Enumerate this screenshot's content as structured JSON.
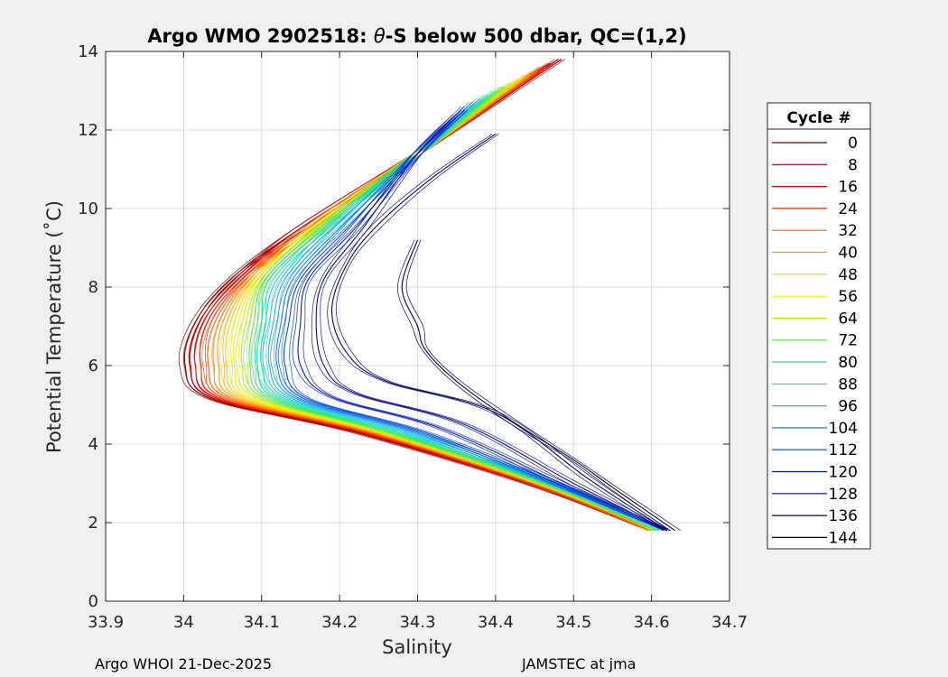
{
  "chart_data": {
    "type": "line",
    "title_prefix": "Argo WMO 2902518: ",
    "title_theta": "θ",
    "title_suffix": "-S below 500 dbar,  QC=(1,2)",
    "xlabel": "Salinity",
    "ylabel": "Potential Temperature (˚C)",
    "xlim": [
      33.9,
      34.7
    ],
    "ylim": [
      0,
      14
    ],
    "xticks": [
      33.9,
      34.0,
      34.1,
      34.2,
      34.3,
      34.4,
      34.5,
      34.6,
      34.7
    ],
    "xtick_labels": [
      "33.9",
      "34",
      "34.1",
      "34.2",
      "34.3",
      "34.4",
      "34.5",
      "34.6",
      "34.7"
    ],
    "yticks": [
      0,
      2,
      4,
      6,
      8,
      10,
      12,
      14
    ],
    "ytick_labels": [
      "0",
      "2",
      "4",
      "6",
      "8",
      "10",
      "12",
      "14"
    ],
    "grid": true,
    "legend_title": "Cycle #",
    "legend_position": "right",
    "series": [
      {
        "name": "0",
        "color": "#800000",
        "points": [
          [
            34.485,
            13.8
          ],
          [
            34.3,
            11.4
          ],
          [
            34.15,
            9.5
          ],
          [
            34.06,
            8.2
          ],
          [
            34.015,
            7.1
          ],
          [
            34.002,
            6.0
          ],
          [
            34.035,
            5.15
          ],
          [
            34.22,
            4.3
          ],
          [
            34.45,
            2.95
          ],
          [
            34.6,
            1.8
          ]
        ]
      },
      {
        "name": "8",
        "color": "#b00000",
        "points": [
          [
            34.48,
            13.8
          ],
          [
            34.3,
            11.4
          ],
          [
            34.15,
            9.5
          ],
          [
            34.065,
            8.2
          ],
          [
            34.02,
            7.1
          ],
          [
            34.008,
            6.0
          ],
          [
            34.04,
            5.15
          ],
          [
            34.225,
            4.3
          ],
          [
            34.452,
            2.95
          ],
          [
            34.6,
            1.8
          ]
        ]
      },
      {
        "name": "16",
        "color": "#dd0000",
        "points": [
          [
            34.47,
            13.7
          ],
          [
            34.3,
            11.4
          ],
          [
            34.15,
            9.5
          ],
          [
            34.07,
            8.2
          ],
          [
            34.025,
            7.1
          ],
          [
            34.015,
            6.0
          ],
          [
            34.045,
            5.15
          ],
          [
            34.23,
            4.3
          ],
          [
            34.455,
            2.95
          ],
          [
            34.6,
            1.8
          ]
        ]
      },
      {
        "name": "24",
        "color": "#ff2000",
        "points": [
          [
            34.46,
            13.6
          ],
          [
            34.3,
            11.4
          ],
          [
            34.16,
            9.5
          ],
          [
            34.075,
            8.2
          ],
          [
            34.03,
            7.1
          ],
          [
            34.022,
            6.0
          ],
          [
            34.05,
            5.15
          ],
          [
            34.235,
            4.3
          ],
          [
            34.457,
            2.95
          ],
          [
            34.6,
            1.8
          ]
        ]
      },
      {
        "name": "32",
        "color": "#ff5a00",
        "points": [
          [
            34.46,
            13.6
          ],
          [
            34.3,
            11.4
          ],
          [
            34.16,
            9.5
          ],
          [
            34.08,
            8.2
          ],
          [
            34.04,
            7.1
          ],
          [
            34.032,
            6.0
          ],
          [
            34.06,
            5.15
          ],
          [
            34.24,
            4.3
          ],
          [
            34.46,
            2.95
          ],
          [
            34.6,
            1.8
          ]
        ]
      },
      {
        "name": "40",
        "color": "#ff9600",
        "points": [
          [
            34.45,
            13.5
          ],
          [
            34.3,
            11.4
          ],
          [
            34.16,
            9.5
          ],
          [
            34.085,
            8.2
          ],
          [
            34.05,
            7.1
          ],
          [
            34.045,
            6.0
          ],
          [
            34.07,
            5.15
          ],
          [
            34.245,
            4.3
          ],
          [
            34.462,
            2.95
          ],
          [
            34.6,
            1.8
          ]
        ]
      },
      {
        "name": "48",
        "color": "#ffc800",
        "points": [
          [
            34.44,
            13.4
          ],
          [
            34.3,
            11.4
          ],
          [
            34.165,
            9.5
          ],
          [
            34.09,
            8.2
          ],
          [
            34.06,
            7.1
          ],
          [
            34.055,
            6.0
          ],
          [
            34.08,
            5.15
          ],
          [
            34.25,
            4.3
          ],
          [
            34.465,
            2.95
          ],
          [
            34.605,
            1.8
          ]
        ]
      },
      {
        "name": "56",
        "color": "#f5f000",
        "points": [
          [
            34.43,
            13.3
          ],
          [
            34.3,
            11.4
          ],
          [
            34.165,
            9.5
          ],
          [
            34.095,
            8.2
          ],
          [
            34.07,
            7.1
          ],
          [
            34.065,
            6.0
          ],
          [
            34.09,
            5.15
          ],
          [
            34.255,
            4.3
          ],
          [
            34.467,
            2.95
          ],
          [
            34.605,
            1.8
          ]
        ]
      },
      {
        "name": "64",
        "color": "#b4f000",
        "points": [
          [
            34.42,
            13.2
          ],
          [
            34.3,
            11.4
          ],
          [
            34.17,
            9.5
          ],
          [
            34.1,
            8.2
          ],
          [
            34.08,
            7.1
          ],
          [
            34.075,
            6.0
          ],
          [
            34.1,
            5.15
          ],
          [
            34.26,
            4.3
          ],
          [
            34.47,
            2.95
          ],
          [
            34.605,
            1.8
          ]
        ]
      },
      {
        "name": "72",
        "color": "#5ae650",
        "points": [
          [
            34.41,
            13.1
          ],
          [
            34.3,
            11.4
          ],
          [
            34.175,
            9.5
          ],
          [
            34.105,
            8.2
          ],
          [
            34.09,
            7.1
          ],
          [
            34.085,
            6.0
          ],
          [
            34.11,
            5.15
          ],
          [
            34.265,
            4.3
          ],
          [
            34.472,
            2.95
          ],
          [
            34.61,
            1.8
          ]
        ]
      },
      {
        "name": "80",
        "color": "#1ee682",
        "points": [
          [
            34.4,
            13.0
          ],
          [
            34.3,
            11.4
          ],
          [
            34.18,
            9.5
          ],
          [
            34.11,
            8.2
          ],
          [
            34.1,
            7.1
          ],
          [
            34.095,
            6.0
          ],
          [
            34.12,
            5.15
          ],
          [
            34.27,
            4.3
          ],
          [
            34.475,
            2.95
          ],
          [
            34.61,
            1.8
          ]
        ]
      },
      {
        "name": "88",
        "color": "#14dcbe",
        "points": [
          [
            34.39,
            12.9
          ],
          [
            34.3,
            11.4
          ],
          [
            34.185,
            9.5
          ],
          [
            34.12,
            8.2
          ],
          [
            34.105,
            7.1
          ],
          [
            34.1,
            6.0
          ],
          [
            34.13,
            5.15
          ],
          [
            34.28,
            4.3
          ],
          [
            34.478,
            2.95
          ],
          [
            34.615,
            1.8
          ]
        ]
      },
      {
        "name": "96",
        "color": "#1eb4f0",
        "points": [
          [
            34.38,
            12.8
          ],
          [
            34.3,
            11.4
          ],
          [
            34.19,
            9.5
          ],
          [
            34.13,
            8.2
          ],
          [
            34.115,
            7.1
          ],
          [
            34.11,
            6.0
          ],
          [
            34.14,
            5.15
          ],
          [
            34.29,
            4.3
          ],
          [
            34.48,
            2.95
          ],
          [
            34.62,
            1.8
          ]
        ]
      },
      {
        "name": "104",
        "color": "#0a82e6",
        "points": [
          [
            34.37,
            12.7
          ],
          [
            34.3,
            11.4
          ],
          [
            34.2,
            9.5
          ],
          [
            34.14,
            8.2
          ],
          [
            34.125,
            7.1
          ],
          [
            34.12,
            6.0
          ],
          [
            34.15,
            5.15
          ],
          [
            34.3,
            4.3
          ],
          [
            34.482,
            2.95
          ],
          [
            34.62,
            1.8
          ]
        ]
      },
      {
        "name": "112",
        "color": "#0a46dc",
        "points": [
          [
            34.36,
            12.6
          ],
          [
            34.3,
            11.4
          ],
          [
            34.21,
            9.5
          ],
          [
            34.15,
            8.2
          ],
          [
            34.135,
            7.1
          ],
          [
            34.13,
            6.0
          ],
          [
            34.16,
            5.15
          ],
          [
            34.31,
            4.3
          ],
          [
            34.485,
            2.95
          ],
          [
            34.62,
            1.8
          ]
        ]
      },
      {
        "name": "120",
        "color": "#0a1ec8",
        "points": [
          [
            34.36,
            12.5
          ],
          [
            34.3,
            11.4
          ],
          [
            34.22,
            9.5
          ],
          [
            34.16,
            8.2
          ],
          [
            34.15,
            7.1
          ],
          [
            34.15,
            6.0
          ],
          [
            34.19,
            5.2
          ],
          [
            34.33,
            4.4
          ],
          [
            34.49,
            2.95
          ],
          [
            34.62,
            1.8
          ]
        ]
      },
      {
        "name": "128",
        "color": "#0a0a96",
        "points": [
          [
            34.35,
            12.4
          ],
          [
            34.3,
            11.4
          ],
          [
            34.23,
            9.5
          ],
          [
            34.18,
            8.2
          ],
          [
            34.17,
            7.1
          ],
          [
            34.18,
            6.0
          ],
          [
            34.22,
            5.3
          ],
          [
            34.36,
            4.5
          ],
          [
            34.5,
            3.0
          ],
          [
            34.62,
            1.8
          ]
        ]
      },
      {
        "name": "136",
        "color": "#05056e",
        "points": [
          [
            34.4,
            11.9
          ],
          [
            34.32,
            10.8
          ],
          [
            34.25,
            9.6
          ],
          [
            34.21,
            8.6
          ],
          [
            34.19,
            7.4
          ],
          [
            34.21,
            6.3
          ],
          [
            34.26,
            5.6
          ],
          [
            34.4,
            4.8
          ],
          [
            34.52,
            3.1
          ],
          [
            34.62,
            1.8
          ]
        ]
      },
      {
        "name": "144",
        "color": "#000040",
        "points": [
          [
            34.3,
            9.2
          ],
          [
            34.28,
            8.0
          ],
          [
            34.3,
            7.0
          ],
          [
            34.31,
            6.4
          ],
          [
            34.35,
            5.6
          ],
          [
            34.42,
            4.6
          ],
          [
            34.5,
            3.6
          ],
          [
            34.55,
            2.9
          ],
          [
            34.63,
            1.8
          ]
        ]
      }
    ],
    "legend_labels": [
      "0",
      "8",
      "16",
      "24",
      "32",
      "40",
      "48",
      "56",
      "64",
      "72",
      "80",
      "88",
      "96",
      "104",
      "112",
      "120",
      "128",
      "136",
      "144"
    ]
  },
  "footer": {
    "left": "Argo WHOI 21-Dec-2025",
    "right": "JAMSTEC at jma"
  }
}
